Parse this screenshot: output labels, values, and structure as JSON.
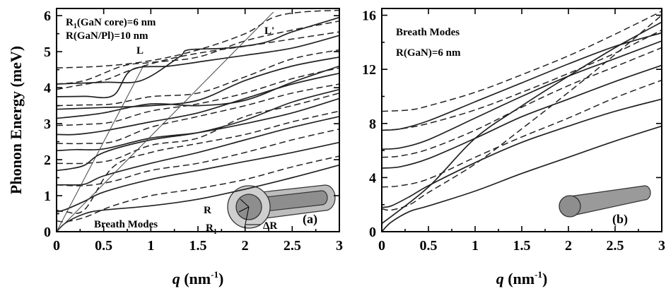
{
  "chart_data": [
    {
      "type": "line",
      "panel_label": "(a)",
      "xlabel_main": "q",
      "xlabel_unit": "(nm",
      "xlabel_sup": "-1",
      "xlabel_close": ")",
      "ylabel": "Phonon Energy (meV)",
      "xlim": [
        0,
        3
      ],
      "ylim": [
        0,
        6.2
      ],
      "xticks": [
        0,
        0.5,
        1,
        1.5,
        2,
        2.5,
        3
      ],
      "xticklabels": [
        "0",
        "0.5",
        "1",
        "1.5",
        "2",
        "2.5",
        "3"
      ],
      "yticks": [
        0,
        1,
        2,
        3,
        4,
        5,
        6
      ],
      "yticklabels": [
        "0",
        "1",
        "2",
        "3",
        "4",
        "5",
        "6"
      ],
      "annotations": {
        "line1_a": "R",
        "line1_sub": "1",
        "line1_b": "(GaN core)=6 nm",
        "line2": "R(GaN/Pl)=10 nm",
        "mode_label": "Breath Modes",
        "L": "L",
        "Lprime": "L'",
        "R": "R",
        "R1_a": "R",
        "R1_sub": "1",
        "dR": "ΔR"
      },
      "light_lines": [
        {
          "name": "L",
          "x": [
            0,
            0.92
          ],
          "y": [
            0,
            4.6
          ]
        },
        {
          "name": "L'",
          "x": [
            0,
            2.3
          ],
          "y": [
            0,
            6.1
          ]
        }
      ],
      "solid_series": [
        {
          "x": [
            0,
            0.1,
            0.3,
            0.5,
            1,
            1.5,
            2,
            2.5,
            3
          ],
          "y": [
            0,
            0.25,
            0.5,
            0.6,
            0.72,
            0.9,
            1.18,
            1.5,
            1.85
          ]
        },
        {
          "x": [
            0,
            0.1,
            0.3,
            0.5,
            1,
            1.5,
            2,
            2.5,
            3
          ],
          "y": [
            0.55,
            0.62,
            0.85,
            1.1,
            1.45,
            1.7,
            1.95,
            2.2,
            2.48
          ]
        },
        {
          "x": [
            0,
            0.1,
            0.3,
            0.5,
            1,
            1.5,
            2,
            2.5,
            3
          ],
          "y": [
            1.3,
            1.3,
            1.32,
            1.55,
            1.9,
            2.2,
            2.55,
            2.9,
            3.2
          ]
        },
        {
          "x": [
            0,
            0.15,
            0.3,
            0.5,
            1,
            1.5,
            2,
            2.5,
            3
          ],
          "y": [
            1.7,
            1.75,
            1.85,
            2.2,
            2.55,
            2.75,
            3.1,
            3.6,
            3.95
          ]
        },
        {
          "x": [
            0,
            0.2,
            0.5,
            1,
            1.5,
            2,
            2.5,
            3
          ],
          "y": [
            2.25,
            2.28,
            2.3,
            2.6,
            2.75,
            3.0,
            3.3,
            3.7
          ]
        },
        {
          "x": [
            0,
            0.2,
            0.5,
            1,
            1.5,
            2,
            2.5,
            3
          ],
          "y": [
            2.7,
            2.7,
            2.8,
            3.05,
            3.3,
            3.7,
            4.1,
            4.4
          ]
        },
        {
          "x": [
            0,
            0.2,
            0.5,
            1,
            1.5,
            2,
            2.5,
            3
          ],
          "y": [
            3.15,
            3.2,
            3.3,
            3.55,
            3.5,
            3.65,
            4.15,
            4.6
          ]
        },
        {
          "x": [
            0,
            0.2,
            0.5,
            1,
            1.5,
            2,
            2.5,
            3
          ],
          "y": [
            3.4,
            3.42,
            3.45,
            3.5,
            3.65,
            4.2,
            4.6,
            4.85
          ]
        },
        {
          "x": [
            0,
            0.3,
            0.6,
            0.8,
            1.2,
            1.6,
            2,
            2.5,
            3
          ],
          "y": [
            3.75,
            3.76,
            3.78,
            4.5,
            4.6,
            4.75,
            4.9,
            5.1,
            5.45
          ]
        },
        {
          "x": [
            0,
            0.5,
            0.9,
            1.3,
            1.4,
            1.8,
            2.2,
            2.5,
            3
          ],
          "y": [
            4.1,
            4.15,
            4.2,
            4.85,
            5.05,
            5.1,
            5.25,
            5.55,
            5.95
          ]
        }
      ],
      "dashed_series": [
        {
          "x": [
            0,
            0.1,
            0.3,
            0.6,
            1,
            1.5,
            2,
            2.5,
            3
          ],
          "y": [
            0.3,
            0.28,
            0.4,
            0.72,
            1.0,
            1.2,
            1.45,
            1.8,
            2.1
          ]
        },
        {
          "x": [
            0,
            0.3,
            0.6,
            1,
            1.5,
            2,
            2.5,
            3
          ],
          "y": [
            1.3,
            1.28,
            1.4,
            1.7,
            1.9,
            2.2,
            2.55,
            2.85
          ]
        },
        {
          "x": [
            0,
            0.1,
            0.3,
            0.6,
            1,
            1.5,
            2,
            2.5,
            3
          ],
          "y": [
            0.6,
            0.55,
            0.62,
            1.8,
            2.2,
            2.45,
            2.7,
            3.05,
            3.35
          ]
        },
        {
          "x": [
            0,
            0.3,
            0.6,
            1,
            1.5,
            2,
            2.5,
            3
          ],
          "y": [
            1.9,
            1.9,
            2.0,
            2.4,
            2.6,
            3.2,
            3.5,
            3.85
          ]
        },
        {
          "x": [
            0,
            0.3,
            0.6,
            1,
            1.5,
            2,
            2.5,
            3
          ],
          "y": [
            2.45,
            2.45,
            2.5,
            2.9,
            3.2,
            3.5,
            3.85,
            4.1
          ]
        },
        {
          "x": [
            0,
            0.3,
            0.6,
            1,
            1.5,
            2,
            2.5,
            3
          ],
          "y": [
            2.95,
            2.98,
            3.05,
            3.35,
            3.55,
            3.85,
            4.25,
            4.55
          ]
        },
        {
          "x": [
            0,
            0.3,
            0.6,
            1,
            1.5,
            2,
            2.5,
            3
          ],
          "y": [
            3.5,
            3.52,
            3.55,
            3.75,
            3.85,
            4.3,
            4.8,
            5.05
          ]
        },
        {
          "x": [
            0,
            0.2,
            0.5,
            0.8,
            1.2,
            1.6,
            2,
            2.5,
            3
          ],
          "y": [
            3.95,
            4.05,
            4.2,
            4.5,
            4.8,
            5.0,
            5.15,
            5.35,
            5.55
          ]
        },
        {
          "x": [
            0,
            0.3,
            0.7,
            1,
            1.5,
            2,
            2.5,
            3
          ],
          "y": [
            4.1,
            4.2,
            4.6,
            4.7,
            4.85,
            5.3,
            5.6,
            5.85
          ]
        },
        {
          "x": [
            0,
            0.5,
            1,
            1.5,
            2,
            2.3,
            2.6,
            3
          ],
          "y": [
            4.55,
            4.6,
            4.75,
            5.05,
            5.5,
            5.95,
            6.1,
            6.15
          ]
        }
      ]
    },
    {
      "type": "line",
      "panel_label": "(b)",
      "xlabel_main": "q",
      "xlabel_unit": "(nm",
      "xlabel_sup": "-1",
      "xlabel_close": ")",
      "xlim": [
        0,
        3
      ],
      "ylim": [
        0,
        16.5
      ],
      "xticks": [
        0,
        0.5,
        1,
        1.5,
        2,
        2.5,
        3
      ],
      "xticklabels": [
        "0",
        "0.5",
        "1",
        "1.5",
        "2",
        "2.5",
        "3"
      ],
      "yticks": [
        0,
        4,
        8,
        12,
        16
      ],
      "yticklabels": [
        "0",
        "4",
        "8",
        "12",
        "16"
      ],
      "annotations": {
        "title": "Breath Modes",
        "sub": "R(GaN)=6 nm"
      },
      "solid_series": [
        {
          "x": [
            0,
            0.1,
            0.3,
            0.5,
            1,
            1.5,
            2,
            2.5,
            3
          ],
          "y": [
            0,
            0.7,
            1.5,
            1.9,
            3.0,
            4.3,
            5.5,
            6.7,
            7.8
          ]
        },
        {
          "x": [
            0,
            0.1,
            0.3,
            0.5,
            1,
            1.5,
            2,
            2.5,
            3
          ],
          "y": [
            1.8,
            1.9,
            2.6,
            3.4,
            5.1,
            6.6,
            7.8,
            8.9,
            9.8
          ]
        },
        {
          "x": [
            0,
            0.2,
            0.5,
            1,
            1.5,
            2,
            2.5,
            3
          ],
          "y": [
            4.7,
            4.8,
            5.4,
            6.9,
            8.5,
            9.8,
            11.1,
            12.3
          ]
        },
        {
          "x": [
            0,
            0.2,
            0.5,
            1,
            1.5,
            2,
            2.5,
            3
          ],
          "y": [
            6.1,
            6.2,
            6.8,
            8.4,
            10.0,
            11.5,
            12.8,
            14.1
          ]
        },
        {
          "x": [
            0,
            0.2,
            0.5,
            1,
            1.5,
            2,
            2.5,
            3
          ],
          "y": [
            7.5,
            7.6,
            8.2,
            9.6,
            11.0,
            12.4,
            13.7,
            14.7
          ]
        },
        {
          "x": [
            0,
            0.5,
            1,
            1.5,
            2,
            2.5,
            3
          ],
          "y": [
            0.6,
            3.3,
            6.9,
            9.3,
            11.5,
            13.6,
            15.5
          ]
        }
      ],
      "dashed_series": [
        {
          "x": [
            0,
            0.1,
            0.3,
            0.5,
            1,
            1.5,
            2,
            2.5,
            3
          ],
          "y": [
            1.7,
            1.6,
            2.0,
            2.9,
            5.0,
            7.6,
            10.3,
            13.1,
            16.0
          ]
        },
        {
          "x": [
            0,
            0.2,
            0.5,
            1,
            1.5,
            2,
            2.5,
            3
          ],
          "y": [
            3.3,
            3.4,
            3.9,
            5.5,
            7.0,
            8.4,
            9.9,
            11.2
          ]
        },
        {
          "x": [
            0,
            0.2,
            0.5,
            1,
            1.5,
            2,
            2.5,
            3
          ],
          "y": [
            5.5,
            5.6,
            6.1,
            7.5,
            9.2,
            10.8,
            12.2,
            13.6
          ]
        },
        {
          "x": [
            0,
            0.2,
            0.5,
            1,
            1.5,
            2,
            2.5,
            3
          ],
          "y": [
            7.5,
            7.6,
            8.0,
            9.0,
            10.3,
            11.7,
            13.2,
            14.9
          ]
        },
        {
          "x": [
            0,
            0.3,
            0.5,
            1,
            1.5,
            2,
            2.5,
            3
          ],
          "y": [
            8.9,
            9.0,
            9.3,
            10.3,
            11.6,
            13.0,
            14.6,
            16.3
          ]
        }
      ]
    }
  ]
}
